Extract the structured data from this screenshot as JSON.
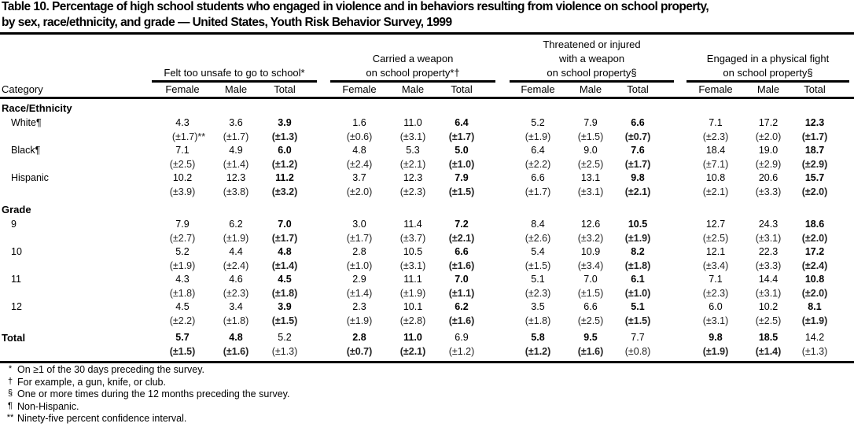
{
  "title": {
    "line1": "Table 10. Percentage of high school students who engaged in violence and in behaviors resulting from violence on school property,",
    "line2": "by sex, race/ethnicity, and grade — United States, Youth Risk Behavior Survey, 1999"
  },
  "header": {
    "category": "Category",
    "groups": [
      {
        "lines": [
          "Felt too unsafe to go to school*"
        ]
      },
      {
        "lines": [
          "Carried a weapon",
          "on school property*†"
        ]
      },
      {
        "lines": [
          "Threatened or injured",
          "with a weapon",
          "on school property§"
        ]
      },
      {
        "lines": [
          "Engaged in a physical fight",
          "on school property§"
        ]
      }
    ],
    "columns": [
      "Female",
      "Male",
      "Total"
    ]
  },
  "rows": [
    {
      "type": "section",
      "label": "Race/Ethnicity"
    },
    {
      "type": "data",
      "label": "White¶",
      "values": [
        "4.3",
        "3.6",
        "3.9",
        "1.6",
        "11.0",
        "6.4",
        "5.2",
        "7.9",
        "6.6",
        "7.1",
        "17.2",
        "12.3"
      ],
      "ci": [
        "(±1.7)**",
        "(±1.7)",
        "(±1.3)",
        "(±0.6)",
        "(±3.1)",
        "(±1.7)",
        "(±1.9)",
        "(±1.5)",
        "(±0.7)",
        "(±2.3)",
        "(±2.0)",
        "(±1.7)"
      ]
    },
    {
      "type": "data",
      "label": "Black¶",
      "values": [
        "7.1",
        "4.9",
        "6.0",
        "4.8",
        "5.3",
        "5.0",
        "6.4",
        "9.0",
        "7.6",
        "18.4",
        "19.0",
        "18.7"
      ],
      "ci": [
        "(±2.5)",
        "(±1.4)",
        "(±1.2)",
        "(±2.4)",
        "(±2.1)",
        "(±1.0)",
        "(±2.2)",
        "(±2.5)",
        "(±1.7)",
        "(±7.1)",
        "(±2.9)",
        "(±2.9)"
      ]
    },
    {
      "type": "data",
      "label": "Hispanic",
      "values": [
        "10.2",
        "12.3",
        "11.2",
        "3.7",
        "12.3",
        "7.9",
        "6.6",
        "13.1",
        "9.8",
        "10.8",
        "20.6",
        "15.7"
      ],
      "ci": [
        "(±3.9)",
        "(±3.8)",
        "(±3.2)",
        "(±2.0)",
        "(±2.3)",
        "(±1.5)",
        "(±1.7)",
        "(±3.1)",
        "(±2.1)",
        "(±2.1)",
        "(±3.3)",
        "(±2.0)"
      ]
    },
    {
      "type": "section",
      "label": "Grade"
    },
    {
      "type": "data",
      "label": "9",
      "values": [
        "7.9",
        "6.2",
        "7.0",
        "3.0",
        "11.4",
        "7.2",
        "8.4",
        "12.6",
        "10.5",
        "12.7",
        "24.3",
        "18.6"
      ],
      "ci": [
        "(±2.7)",
        "(±1.9)",
        "(±1.7)",
        "(±1.7)",
        "(±3.7)",
        "(±2.1)",
        "(±2.6)",
        "(±3.2)",
        "(±1.9)",
        "(±2.5)",
        "(±3.1)",
        "(±2.0)"
      ]
    },
    {
      "type": "data",
      "label": "10",
      "values": [
        "5.2",
        "4.4",
        "4.8",
        "2.8",
        "10.5",
        "6.6",
        "5.4",
        "10.9",
        "8.2",
        "12.1",
        "22.3",
        "17.2"
      ],
      "ci": [
        "(±1.9)",
        "(±2.4)",
        "(±1.4)",
        "(±1.0)",
        "(±3.1)",
        "(±1.6)",
        "(±1.5)",
        "(±3.4)",
        "(±1.8)",
        "(±3.4)",
        "(±3.3)",
        "(±2.4)"
      ]
    },
    {
      "type": "data",
      "label": "11",
      "values": [
        "4.3",
        "4.6",
        "4.5",
        "2.9",
        "11.1",
        "7.0",
        "5.1",
        "7.0",
        "6.1",
        "7.1",
        "14.4",
        "10.8"
      ],
      "ci": [
        "(±1.8)",
        "(±2.3)",
        "(±1.8)",
        "(±1.4)",
        "(±1.9)",
        "(±1.1)",
        "(±2.3)",
        "(±1.5)",
        "(±1.0)",
        "(±2.3)",
        "(±3.1)",
        "(±2.0)"
      ]
    },
    {
      "type": "data",
      "label": "12",
      "values": [
        "4.5",
        "3.4",
        "3.9",
        "2.3",
        "10.1",
        "6.2",
        "3.5",
        "6.6",
        "5.1",
        "6.0",
        "10.2",
        "8.1"
      ],
      "ci": [
        "(±2.2)",
        "(±1.8)",
        "(±1.5)",
        "(±1.9)",
        "(±2.8)",
        "(±1.6)",
        "(±1.8)",
        "(±2.5)",
        "(±1.5)",
        "(±3.1)",
        "(±2.5)",
        "(±1.9)"
      ]
    },
    {
      "type": "total",
      "label": "Total",
      "values": [
        "5.7",
        "4.8",
        "5.2",
        "2.8",
        "11.0",
        "6.9",
        "5.8",
        "9.5",
        "7.7",
        "9.8",
        "18.5",
        "14.2"
      ],
      "ci": [
        "(±1.5)",
        "(±1.6)",
        "(±1.3)",
        "(±0.7)",
        "(±2.1)",
        "(±1.2)",
        "(±1.2)",
        "(±1.6)",
        "(±0.8)",
        "(±1.9)",
        "(±1.4)",
        "(±1.3)"
      ]
    }
  ],
  "footnotes": [
    {
      "symbol": "*",
      "text": "On ≥1 of the 30 days preceding the survey."
    },
    {
      "symbol": "†",
      "text": "For example, a gun, knife, or club."
    },
    {
      "symbol": "§",
      "text": "One or more times during the 12 months preceding the survey."
    },
    {
      "symbol": "¶",
      "text": "Non-Hispanic."
    },
    {
      "symbol": "**",
      "text": "Ninety-five percent confidence interval."
    }
  ]
}
